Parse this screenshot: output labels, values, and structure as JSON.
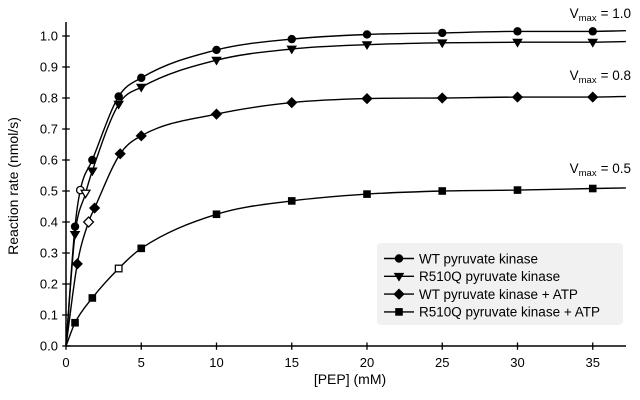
{
  "figure": {
    "background": "#ffffff",
    "ink": "#000000",
    "legend_bg": "#f1f1f1"
  },
  "chart_data": {
    "type": "line",
    "title": "",
    "xlabel": "[PEP] (mM)",
    "ylabel": "Reaction rate (nmol/s)",
    "xlim": [
      0,
      37.2
    ],
    "ylim": [
      0,
      1.045
    ],
    "x_ticks": [
      "0",
      "5",
      "10",
      "15",
      "20",
      "25",
      "30",
      "35"
    ],
    "x_tick_values": [
      0,
      5,
      10,
      15,
      20,
      25,
      30,
      35
    ],
    "y_ticks": [
      "0.0",
      "0.1",
      "0.2",
      "0.3",
      "0.4",
      "0.5",
      "0.6",
      "0.7",
      "0.8",
      "0.9",
      "1.0"
    ],
    "y_tick_values": [
      0,
      0.1,
      0.2,
      0.3,
      0.4,
      0.5,
      0.6,
      0.7,
      0.8,
      0.9,
      1.0
    ],
    "grid": false,
    "legend_position": "lower right",
    "series": [
      {
        "name": "WT pyruvate kinase",
        "marker": "circle",
        "vmax": 1.0,
        "x": [
          0.6,
          1.75,
          3.5,
          5,
          10,
          15,
          20,
          25,
          30,
          35
        ],
        "y": [
          0.385,
          0.6,
          0.805,
          0.865,
          0.955,
          0.99,
          1.005,
          1.01,
          1.015,
          1.015
        ],
        "km_point": {
          "x": 0.95,
          "y": 0.503,
          "style": "open"
        },
        "curve_end": {
          "x": 37.2,
          "y": 1.017
        }
      },
      {
        "name": "R510Q pyruvate kinase",
        "marker": "triangle-down",
        "vmax": 1.0,
        "x": [
          0.6,
          1.75,
          3.5,
          5,
          10,
          15,
          20,
          25,
          30,
          35
        ],
        "y": [
          0.36,
          0.565,
          0.78,
          0.835,
          0.922,
          0.958,
          0.972,
          0.978,
          0.98,
          0.98
        ],
        "km_point": {
          "x": 1.3,
          "y": 0.493,
          "style": "open"
        },
        "curve_end": {
          "x": 37.2,
          "y": 0.982
        }
      },
      {
        "name": "WT pyruvate kinase + ATP",
        "marker": "diamond",
        "vmax": 0.8,
        "x": [
          0.75,
          1.9,
          3.6,
          5,
          10,
          15,
          20,
          25,
          30,
          35
        ],
        "y": [
          0.265,
          0.445,
          0.62,
          0.678,
          0.748,
          0.785,
          0.798,
          0.8,
          0.803,
          0.803
        ],
        "km_point": {
          "x": 1.5,
          "y": 0.4,
          "style": "open"
        },
        "curve_end": {
          "x": 37.2,
          "y": 0.805
        }
      },
      {
        "name": "R510Q pyruvate kinase + ATP",
        "marker": "square",
        "vmax": 0.5,
        "x": [
          0.6,
          1.75,
          5,
          10,
          15,
          20,
          25,
          30,
          35
        ],
        "y": [
          0.075,
          0.155,
          0.315,
          0.425,
          0.468,
          0.49,
          0.5,
          0.503,
          0.508
        ],
        "km_point": {
          "x": 3.5,
          "y": 0.25,
          "style": "open"
        },
        "curve_end": {
          "x": 37.2,
          "y": 0.51
        }
      }
    ],
    "annotations": [
      {
        "base": "V",
        "sub": "max",
        "text": "= 1.0",
        "vmax": 1.0
      },
      {
        "base": "V",
        "sub": "max",
        "text": "= 0.8",
        "vmax": 0.8
      },
      {
        "base": "V",
        "sub": "max",
        "text": "= 0.5",
        "vmax": 0.5
      }
    ]
  }
}
